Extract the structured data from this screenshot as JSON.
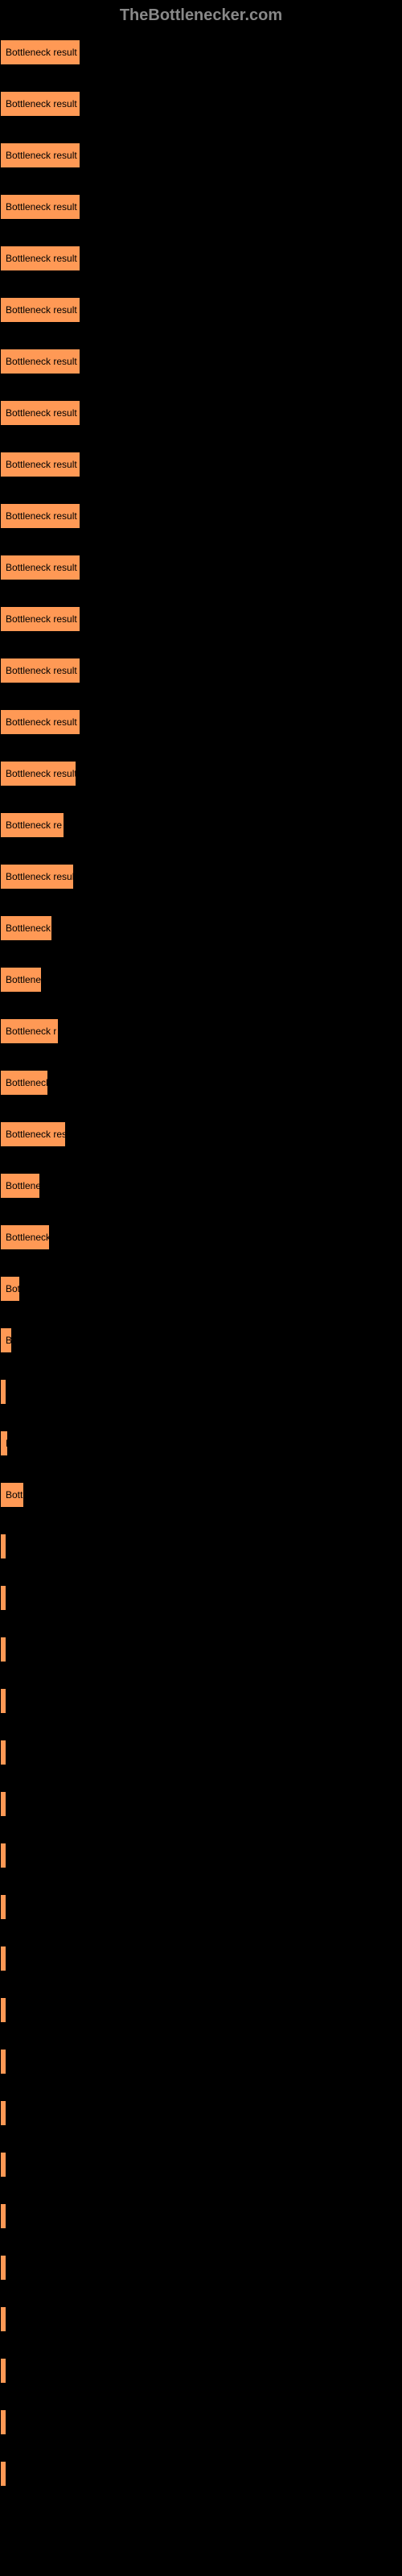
{
  "header": {
    "title": "TheBottlenecker.com"
  },
  "chart": {
    "type": "bar",
    "bar_color": "#ff9955",
    "text_color": "#000000",
    "background_color": "#000000",
    "header_color": "#888888",
    "bars": [
      {
        "label": "Bottleneck result",
        "width": 100
      },
      {
        "label": "Bottleneck result",
        "width": 100
      },
      {
        "label": "Bottleneck result",
        "width": 100
      },
      {
        "label": "Bottleneck result",
        "width": 100
      },
      {
        "label": "Bottleneck result",
        "width": 100
      },
      {
        "label": "Bottleneck result",
        "width": 100
      },
      {
        "label": "Bottleneck result",
        "width": 100
      },
      {
        "label": "Bottleneck result",
        "width": 100
      },
      {
        "label": "Bottleneck result",
        "width": 100
      },
      {
        "label": "Bottleneck result",
        "width": 100
      },
      {
        "label": "Bottleneck result",
        "width": 100
      },
      {
        "label": "Bottleneck result",
        "width": 100
      },
      {
        "label": "Bottleneck result",
        "width": 100
      },
      {
        "label": "Bottleneck result",
        "width": 100
      },
      {
        "label": "Bottleneck result",
        "width": 95
      },
      {
        "label": "Bottleneck re",
        "width": 80
      },
      {
        "label": "Bottleneck resul",
        "width": 92
      },
      {
        "label": "Bottleneck",
        "width": 65
      },
      {
        "label": "Bottlene",
        "width": 52
      },
      {
        "label": "Bottleneck r",
        "width": 73
      },
      {
        "label": "Bottleneck",
        "width": 60
      },
      {
        "label": "Bottleneck res",
        "width": 82
      },
      {
        "label": "Bottlene",
        "width": 50
      },
      {
        "label": "Bottleneck",
        "width": 62
      },
      {
        "label": "Bot",
        "width": 25
      },
      {
        "label": "B",
        "width": 15
      },
      {
        "label": "",
        "width": 4
      },
      {
        "label": "B",
        "width": 10
      },
      {
        "label": "Bottl",
        "width": 30
      },
      {
        "label": "",
        "width": 2
      },
      {
        "label": "",
        "width": 2
      },
      {
        "label": "",
        "width": 2
      },
      {
        "label": "",
        "width": 2
      },
      {
        "label": "",
        "width": 2
      },
      {
        "label": "",
        "width": 2
      },
      {
        "label": "",
        "width": 2
      },
      {
        "label": "",
        "width": 2
      },
      {
        "label": "",
        "width": 2
      },
      {
        "label": "",
        "width": 2
      },
      {
        "label": "",
        "width": 2
      },
      {
        "label": "",
        "width": 2
      },
      {
        "label": "",
        "width": 2
      },
      {
        "label": "",
        "width": 2
      },
      {
        "label": "",
        "width": 2
      },
      {
        "label": "",
        "width": 2
      },
      {
        "label": "",
        "width": 2
      },
      {
        "label": "",
        "width": 2
      },
      {
        "label": "",
        "width": 2
      }
    ]
  }
}
